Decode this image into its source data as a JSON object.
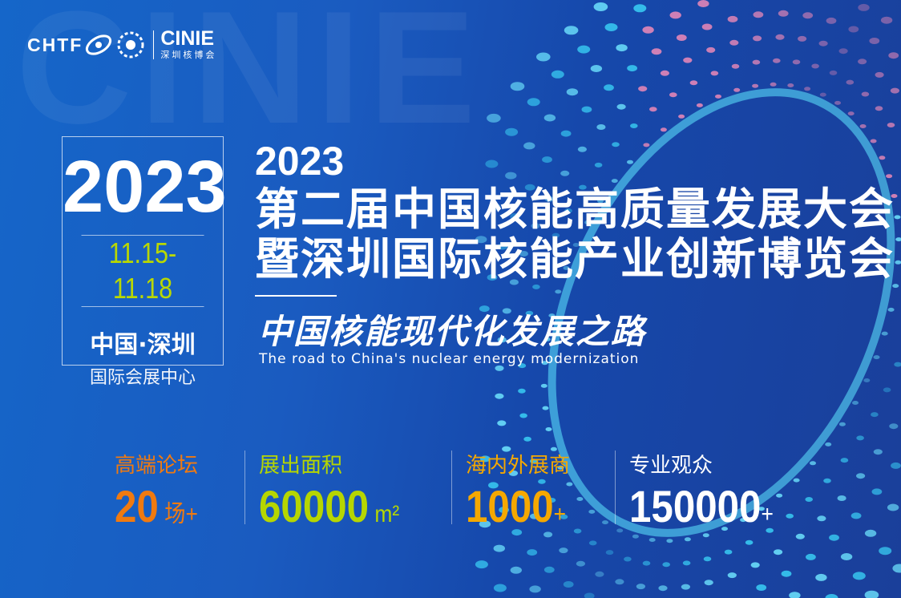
{
  "logo": {
    "chtf": "CHTF",
    "cinie": "CINIE",
    "cinie_cn": "深圳核博会"
  },
  "background_text": "CINIE",
  "date_box": {
    "year": "2023",
    "dates": "11.15-11.18",
    "city": "中国·深圳",
    "venue": "国际会展中心"
  },
  "title": {
    "year": "2023",
    "line1": "第二届中国核能高质量发展大会",
    "line2": "暨深圳国际核能产业创新博览会"
  },
  "slogan": "中国核能现代化发展之路",
  "english": "The road  to China's nuclear energy modernization",
  "stats": [
    {
      "label": "高端论坛",
      "value": "20",
      "unit": " 场+",
      "color": "#f07a10"
    },
    {
      "label": "展出面积",
      "value": "60000",
      "unit": " m²",
      "color": "#b6d600"
    },
    {
      "label": "海内外展商",
      "value": "1000",
      "unit": "+",
      "color": "#f5a800"
    },
    {
      "label": "专业观众",
      "value": "150000",
      "unit": "+",
      "color": "#ffffff"
    }
  ],
  "colors": {
    "background": "#1a5bc0",
    "accent_green": "#b9d800",
    "ring": "#38d6f5"
  }
}
